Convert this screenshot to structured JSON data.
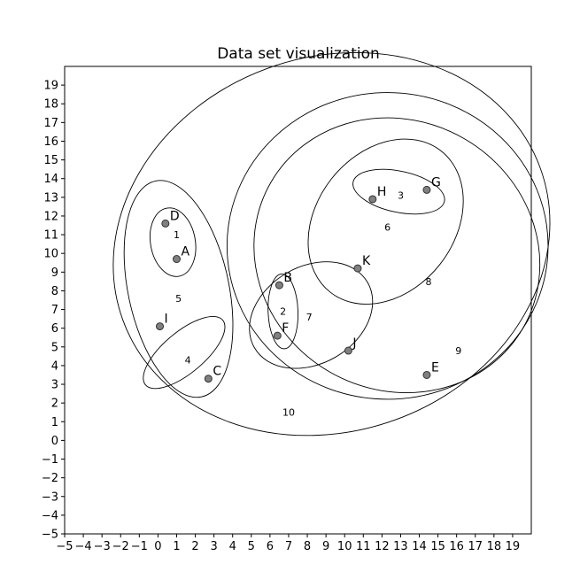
{
  "chart_data": {
    "type": "scatter",
    "title": "Data set visualization",
    "xlabel": "",
    "ylabel": "",
    "xlim": [
      -5,
      20
    ],
    "ylim": [
      -5,
      20
    ],
    "xticks": [
      -5,
      -4,
      -3,
      -2,
      -1,
      0,
      1,
      2,
      3,
      4,
      5,
      6,
      7,
      8,
      9,
      10,
      11,
      12,
      13,
      14,
      15,
      16,
      17,
      18,
      19
    ],
    "yticks": [
      -5,
      -4,
      -3,
      -2,
      -1,
      0,
      1,
      2,
      3,
      4,
      5,
      6,
      7,
      8,
      9,
      10,
      11,
      12,
      13,
      14,
      15,
      16,
      17,
      18,
      19
    ],
    "grid": false,
    "point_color": "#808080",
    "points": [
      {
        "label": "A",
        "x": 1.0,
        "y": 9.7
      },
      {
        "label": "B",
        "x": 6.5,
        "y": 8.3
      },
      {
        "label": "C",
        "x": 2.7,
        "y": 3.3
      },
      {
        "label": "D",
        "x": 0.4,
        "y": 11.6
      },
      {
        "label": "E",
        "x": 14.4,
        "y": 3.5
      },
      {
        "label": "F",
        "x": 6.4,
        "y": 5.6
      },
      {
        "label": "G",
        "x": 14.4,
        "y": 13.4
      },
      {
        "label": "H",
        "x": 11.5,
        "y": 12.9
      },
      {
        "label": "I",
        "x": 0.1,
        "y": 6.1
      },
      {
        "label": "J",
        "x": 10.2,
        "y": 4.8
      },
      {
        "label": "K",
        "x": 10.7,
        "y": 9.2
      }
    ],
    "clusters": [
      {
        "label": "1",
        "cx": 0.8,
        "cy": 10.6,
        "rx": 1.2,
        "ry": 1.85,
        "angle": -10,
        "label_x": 1.0,
        "label_y": 11.0
      },
      {
        "label": "2",
        "cx": 6.7,
        "cy": 6.9,
        "rx": 0.8,
        "ry": 2.0,
        "angle": -2,
        "label_x": 6.7,
        "label_y": 6.9
      },
      {
        "label": "3",
        "cx": 12.9,
        "cy": 13.3,
        "rx": 2.5,
        "ry": 1.1,
        "angle": 12,
        "label_x": 13.0,
        "label_y": 13.1
      },
      {
        "label": "4",
        "cx": 1.4,
        "cy": 4.7,
        "rx": 2.7,
        "ry": 1.1,
        "angle": -40,
        "label_x": 1.6,
        "label_y": 4.3
      },
      {
        "label": "5",
        "cx": 1.1,
        "cy": 8.1,
        "rx": 2.7,
        "ry": 5.9,
        "angle": -12,
        "label_x": 1.1,
        "label_y": 7.6
      },
      {
        "label": "6",
        "cx": 12.2,
        "cy": 11.7,
        "rx": 3.7,
        "ry": 4.8,
        "angle": 38,
        "label_x": 12.3,
        "label_y": 11.4
      },
      {
        "label": "7",
        "cx": 8.2,
        "cy": 6.7,
        "rx": 3.5,
        "ry": 2.6,
        "angle": -30,
        "label_x": 8.1,
        "label_y": 6.6
      },
      {
        "label": "8",
        "cx": 12.8,
        "cy": 9.9,
        "rx": 7.8,
        "ry": 7.2,
        "angle": 30,
        "label_x": 14.5,
        "label_y": 8.5
      },
      {
        "label": "9",
        "cx": 12.3,
        "cy": 10.4,
        "rx": 8.6,
        "ry": 8.2,
        "angle": 0,
        "label_x": 16.1,
        "label_y": 4.8
      },
      {
        "label": "10",
        "cx": 9.3,
        "cy": 10.5,
        "rx": 11.9,
        "ry": 10.0,
        "angle": -20,
        "label_x": 7.0,
        "label_y": 1.5
      }
    ]
  }
}
